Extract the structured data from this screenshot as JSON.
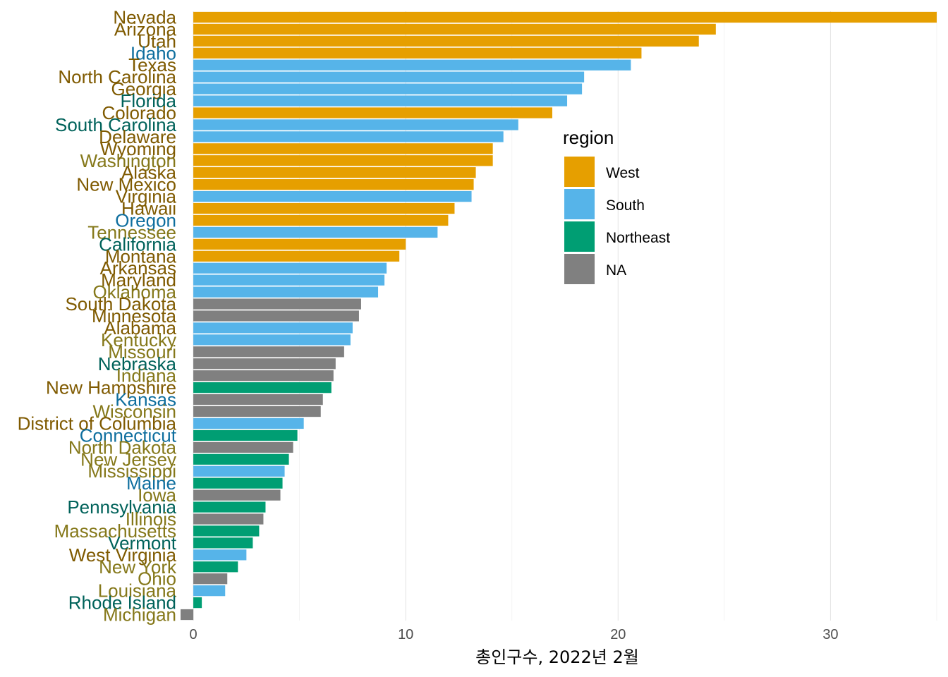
{
  "chart_data": {
    "type": "bar",
    "orientation": "horizontal",
    "xlabel": "총인구수, 2022년 2월",
    "xlim": [
      -0.6,
      35
    ],
    "xticks": [
      0,
      10,
      20,
      30
    ],
    "grid": true,
    "legend": {
      "title": "region",
      "placement": "right",
      "entries": [
        {
          "name": "West",
          "color": "#E69F00"
        },
        {
          "name": "South",
          "color": "#56B4E9"
        },
        {
          "name": "Northeast",
          "color": "#009E73"
        },
        {
          "name": "NA",
          "color": "#808080"
        }
      ]
    },
    "rows": [
      {
        "state": "Nevada",
        "value": 35.0,
        "region": "West",
        "label_color": "#7F5A00"
      },
      {
        "state": "Arizona",
        "value": 24.6,
        "region": "West",
        "label_color": "#7F5A00"
      },
      {
        "state": "Utah",
        "value": 23.8,
        "region": "West",
        "label_color": "#7F5A00"
      },
      {
        "state": "Idaho",
        "value": 21.1,
        "region": "West",
        "label_color": "#0E6E9E"
      },
      {
        "state": "Texas",
        "value": 20.6,
        "region": "South",
        "label_color": "#7F5A00"
      },
      {
        "state": "North Carolina",
        "value": 18.4,
        "region": "South",
        "label_color": "#7F5A00"
      },
      {
        "state": "Georgia",
        "value": 18.3,
        "region": "South",
        "label_color": "#7F5A00"
      },
      {
        "state": "Florida",
        "value": 17.6,
        "region": "South",
        "label_color": "#00625A"
      },
      {
        "state": "Colorado",
        "value": 16.9,
        "region": "West",
        "label_color": "#7F5A00"
      },
      {
        "state": "South Carolina",
        "value": 15.3,
        "region": "South",
        "label_color": "#00625A"
      },
      {
        "state": "Delaware",
        "value": 14.6,
        "region": "South",
        "label_color": "#7F5A00"
      },
      {
        "state": "Wyoming",
        "value": 14.1,
        "region": "West",
        "label_color": "#7F5A00"
      },
      {
        "state": "Washington",
        "value": 14.1,
        "region": "West",
        "label_color": "#85781A"
      },
      {
        "state": "Alaska",
        "value": 13.3,
        "region": "West",
        "label_color": "#7F5A00"
      },
      {
        "state": "New Mexico",
        "value": 13.2,
        "region": "West",
        "label_color": "#7F5A00"
      },
      {
        "state": "Virginia",
        "value": 13.1,
        "region": "South",
        "label_color": "#7F5A00"
      },
      {
        "state": "Hawaii",
        "value": 12.3,
        "region": "West",
        "label_color": "#7F5A00"
      },
      {
        "state": "Oregon",
        "value": 12.0,
        "region": "West",
        "label_color": "#0E6E9E"
      },
      {
        "state": "Tennessee",
        "value": 11.5,
        "region": "South",
        "label_color": "#85781A"
      },
      {
        "state": "California",
        "value": 10.0,
        "region": "West",
        "label_color": "#00625A"
      },
      {
        "state": "Montana",
        "value": 9.7,
        "region": "West",
        "label_color": "#7F5A00"
      },
      {
        "state": "Arkansas",
        "value": 9.1,
        "region": "South",
        "label_color": "#7F5A00"
      },
      {
        "state": "Maryland",
        "value": 9.0,
        "region": "South",
        "label_color": "#7F5A00"
      },
      {
        "state": "Oklahoma",
        "value": 8.7,
        "region": "South",
        "label_color": "#85781A"
      },
      {
        "state": "South Dakota",
        "value": 7.9,
        "region": "NA",
        "label_color": "#7F5A00"
      },
      {
        "state": "Minnesota",
        "value": 7.8,
        "region": "NA",
        "label_color": "#7F5A00"
      },
      {
        "state": "Alabama",
        "value": 7.5,
        "region": "South",
        "label_color": "#7F5A00"
      },
      {
        "state": "Kentucky",
        "value": 7.4,
        "region": "South",
        "label_color": "#85781A"
      },
      {
        "state": "Missouri",
        "value": 7.1,
        "region": "NA",
        "label_color": "#85781A"
      },
      {
        "state": "Nebraska",
        "value": 6.7,
        "region": "NA",
        "label_color": "#00625A"
      },
      {
        "state": "Indiana",
        "value": 6.6,
        "region": "NA",
        "label_color": "#85781A"
      },
      {
        "state": "New Hampshire",
        "value": 6.5,
        "region": "Northeast",
        "label_color": "#7F5A00"
      },
      {
        "state": "Kansas",
        "value": 6.1,
        "region": "NA",
        "label_color": "#0E6E9E"
      },
      {
        "state": "Wisconsin",
        "value": 6.0,
        "region": "NA",
        "label_color": "#85781A"
      },
      {
        "state": "District of Columbia",
        "value": 5.2,
        "region": "South",
        "label_color": "#7F5A00"
      },
      {
        "state": "Connecticut",
        "value": 4.9,
        "region": "Northeast",
        "label_color": "#0E6E9E"
      },
      {
        "state": "North Dakota",
        "value": 4.7,
        "region": "NA",
        "label_color": "#85781A"
      },
      {
        "state": "New Jersey",
        "value": 4.5,
        "region": "Northeast",
        "label_color": "#85781A"
      },
      {
        "state": "Mississippi",
        "value": 4.3,
        "region": "South",
        "label_color": "#85781A"
      },
      {
        "state": "Maine",
        "value": 4.2,
        "region": "Northeast",
        "label_color": "#0E6E9E"
      },
      {
        "state": "Iowa",
        "value": 4.1,
        "region": "NA",
        "label_color": "#85781A"
      },
      {
        "state": "Pennsylvania",
        "value": 3.4,
        "region": "Northeast",
        "label_color": "#00625A"
      },
      {
        "state": "Illinois",
        "value": 3.3,
        "region": "NA",
        "label_color": "#85781A"
      },
      {
        "state": "Massachusetts",
        "value": 3.1,
        "region": "Northeast",
        "label_color": "#85781A"
      },
      {
        "state": "Vermont",
        "value": 2.8,
        "region": "Northeast",
        "label_color": "#00625A"
      },
      {
        "state": "West Virginia",
        "value": 2.5,
        "region": "South",
        "label_color": "#7F5A00"
      },
      {
        "state": "New York",
        "value": 2.1,
        "region": "Northeast",
        "label_color": "#85781A"
      },
      {
        "state": "Ohio",
        "value": 1.6,
        "region": "NA",
        "label_color": "#85781A"
      },
      {
        "state": "Louisiana",
        "value": 1.5,
        "region": "South",
        "label_color": "#85781A"
      },
      {
        "state": "Rhode Island",
        "value": 0.4,
        "region": "Northeast",
        "label_color": "#00625A"
      },
      {
        "state": "Michigan",
        "value": -0.6,
        "region": "NA",
        "label_color": "#85781A"
      }
    ]
  }
}
